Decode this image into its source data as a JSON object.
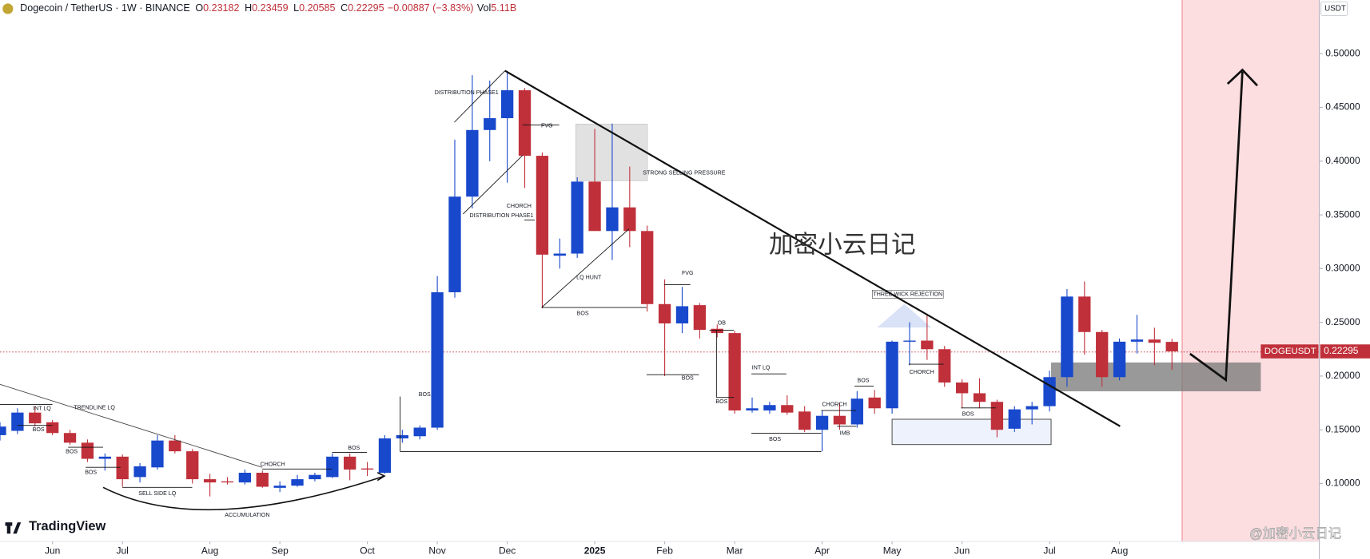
{
  "chart_data": {
    "type": "candlestick",
    "header": {
      "symbol": "Dogecoin / TetherUS · 1W · BINANCE",
      "ohlc": [
        {
          "key": "O",
          "value": "0.23182"
        },
        {
          "key": "H",
          "value": "0.23459"
        },
        {
          "key": "L",
          "value": "0.20585"
        },
        {
          "key": "C",
          "value": "0.22295"
        }
      ],
      "change": "−0.00887 (−3.83%)",
      "vol_key": "Vol",
      "vol_value": "5.11B"
    },
    "y_unit": "USDT",
    "last_price_symbol": "DOGEUSDT",
    "last_price_label": "0.22295",
    "last_price": 0.22295,
    "watermark": "加密小云日记",
    "logo": "TradingView",
    "credit": "@加密小云日记",
    "up_color": "#1848cc",
    "down_color": "#c0303a",
    "ylim": [
      0.046,
      0.55
    ],
    "yticks": [
      {
        "value": 0.1,
        "label": "0.10000"
      },
      {
        "value": 0.15,
        "label": "0.15000"
      },
      {
        "value": 0.2,
        "label": "0.20000"
      },
      {
        "value": 0.25,
        "label": "0.25000"
      },
      {
        "value": 0.3,
        "label": "0.30000"
      },
      {
        "value": 0.35,
        "label": "0.35000"
      },
      {
        "value": 0.4,
        "label": "0.40000"
      },
      {
        "value": 0.45,
        "label": "0.45000"
      },
      {
        "value": 0.5,
        "label": "0.50000"
      }
    ],
    "xticks": [
      {
        "value": 3,
        "label": "Jun"
      },
      {
        "value": 7,
        "label": "Jul"
      },
      {
        "value": 12,
        "label": "Aug"
      },
      {
        "value": 16,
        "label": "Sep"
      },
      {
        "value": 21,
        "label": "Oct"
      },
      {
        "value": 25,
        "label": "Nov"
      },
      {
        "value": 29,
        "label": "Dec"
      },
      {
        "value": 34,
        "label": "2025"
      },
      {
        "value": 38,
        "label": "Feb"
      },
      {
        "value": 42,
        "label": "Mar"
      },
      {
        "value": 47,
        "label": "Apr"
      },
      {
        "value": 51,
        "label": "May"
      },
      {
        "value": 55,
        "label": "Jun"
      },
      {
        "value": 60,
        "label": "Jul"
      },
      {
        "value": 64,
        "label": "Aug"
      }
    ],
    "open": [
      0.145,
      0.149,
      0.166,
      0.157,
      0.147,
      0.138,
      0.123,
      0.125,
      0.106,
      0.115,
      0.14,
      0.13,
      0.104,
      0.102,
      0.101,
      0.11,
      0.096,
      0.098,
      0.104,
      0.106,
      0.125,
      0.114,
      0.11,
      0.142,
      0.144,
      0.152,
      0.278,
      0.367,
      0.429,
      0.44,
      0.466,
      0.405,
      0.312,
      0.314,
      0.381,
      0.335,
      0.357,
      0.335,
      0.267,
      0.249,
      0.266,
      0.244,
      0.24,
      0.168,
      0.168,
      0.173,
      0.167,
      0.15,
      0.163,
      0.155,
      0.18,
      0.17,
      0.232,
      0.233,
      0.225,
      0.194,
      0.184,
      0.176,
      0.151,
      0.169,
      0.172,
      0.199,
      0.274,
      0.241,
      0.199,
      0.232,
      0.234,
      0.23182
    ],
    "high": [
      0.157,
      0.17,
      0.172,
      0.159,
      0.15,
      0.141,
      0.128,
      0.127,
      0.119,
      0.145,
      0.145,
      0.132,
      0.109,
      0.106,
      0.113,
      0.112,
      0.102,
      0.108,
      0.11,
      0.128,
      0.128,
      0.12,
      0.145,
      0.15,
      0.154,
      0.293,
      0.42,
      0.48,
      0.475,
      0.484,
      0.468,
      0.408,
      0.328,
      0.385,
      0.43,
      0.435,
      0.395,
      0.34,
      0.29,
      0.283,
      0.268,
      0.248,
      0.242,
      0.18,
      0.176,
      0.182,
      0.172,
      0.168,
      0.175,
      0.186,
      0.187,
      0.233,
      0.25,
      0.258,
      0.228,
      0.197,
      0.198,
      0.178,
      0.172,
      0.176,
      0.205,
      0.281,
      0.288,
      0.243,
      0.235,
      0.257,
      0.245,
      0.23459
    ],
    "low": [
      0.14,
      0.146,
      0.153,
      0.145,
      0.136,
      0.12,
      0.112,
      0.097,
      0.101,
      0.113,
      0.128,
      0.1,
      0.088,
      0.099,
      0.099,
      0.096,
      0.092,
      0.097,
      0.102,
      0.105,
      0.103,
      0.107,
      0.109,
      0.138,
      0.141,
      0.15,
      0.273,
      0.356,
      0.4,
      0.38,
      0.375,
      0.263,
      0.3,
      0.31,
      0.335,
      0.308,
      0.32,
      0.26,
      0.2,
      0.24,
      0.235,
      0.236,
      0.165,
      0.166,
      0.165,
      0.164,
      0.148,
      0.13,
      0.15,
      0.152,
      0.165,
      0.165,
      0.21,
      0.215,
      0.19,
      0.17,
      0.17,
      0.143,
      0.148,
      0.155,
      0.167,
      0.19,
      0.22,
      0.19,
      0.196,
      0.221,
      0.21,
      0.20585
    ],
    "close": [
      0.153,
      0.166,
      0.156,
      0.147,
      0.138,
      0.123,
      0.125,
      0.104,
      0.116,
      0.14,
      0.13,
      0.104,
      0.101,
      0.101,
      0.11,
      0.097,
      0.098,
      0.104,
      0.108,
      0.125,
      0.113,
      0.113,
      0.142,
      0.145,
      0.152,
      0.278,
      0.367,
      0.429,
      0.44,
      0.466,
      0.405,
      0.313,
      0.314,
      0.381,
      0.335,
      0.357,
      0.335,
      0.267,
      0.249,
      0.265,
      0.243,
      0.24,
      0.168,
      0.17,
      0.173,
      0.166,
      0.15,
      0.163,
      0.155,
      0.179,
      0.17,
      0.232,
      0.233,
      0.225,
      0.194,
      0.184,
      0.176,
      0.15,
      0.169,
      0.172,
      0.199,
      0.274,
      0.241,
      0.199,
      0.232,
      0.234,
      0.231,
      0.22295
    ],
    "annotations": [
      "INT LQ",
      "TRENDLINE LQ",
      "BOS",
      "BOS",
      "BOS",
      "SELL SIDE LQ",
      "ACCUMULATION",
      "CHORCH",
      "BOS",
      "BOS",
      "DISTRIBUTION PHASE1",
      "FVG",
      "CHORCH",
      "DISTRIBUTION PHASE1",
      "STRONG SELLING PRESSURE",
      "LQ HUNT",
      "BOS",
      "FVG",
      "OB",
      "BOS",
      "INT LQ",
      "BOS",
      "BOS",
      "CHORCH",
      "IMB",
      "BOS",
      "THREE WICK REJECTION",
      "CHORCH",
      "BOS"
    ]
  }
}
